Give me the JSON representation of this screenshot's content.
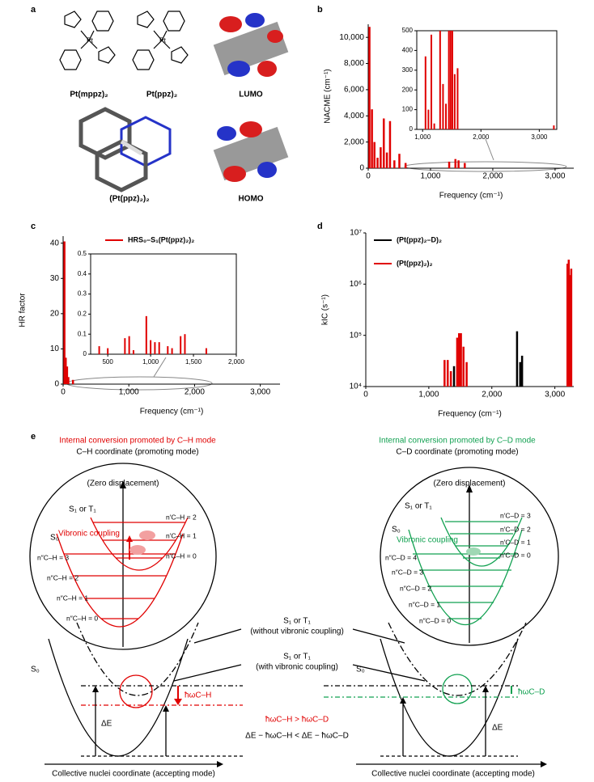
{
  "panels": {
    "a": "a",
    "b": "b",
    "c": "c",
    "d": "d",
    "e": "e"
  },
  "structures": {
    "labels": [
      "Pt(mppz)₂",
      "Pt(ppz)₂",
      "LUMO",
      "(Pt(ppz)₂)₂",
      "HOMO"
    ]
  },
  "chart_data": [
    {
      "type": "bar",
      "xlabel": "Frequency (cm⁻¹)",
      "ylabel": "NACME (cm⁻¹)",
      "color": "#e00000",
      "x": [
        20,
        60,
        100,
        150,
        200,
        250,
        300,
        350,
        420,
        500,
        600,
        1300,
        1400,
        1450,
        1550
      ],
      "values": [
        10800,
        4500,
        2000,
        800,
        1600,
        3800,
        1200,
        3600,
        600,
        1100,
        400,
        500,
        700,
        600,
        400
      ],
      "xlim": [
        0,
        3300
      ],
      "xticks": [
        0,
        {
          "value": 1000,
          "label": "1,000"
        },
        {
          "value": 2000,
          "label": "2,000"
        },
        {
          "value": 3000,
          "label": "3,000"
        }
      ],
      "ylim": [
        0,
        11000
      ],
      "yticks": [
        0,
        {
          "value": 2000,
          "label": "2,000"
        },
        {
          "value": 4000,
          "label": "4,000"
        },
        {
          "value": 6000,
          "label": "6,000"
        },
        {
          "value": 8000,
          "label": "8,000"
        },
        {
          "value": 10000,
          "label": "10,000"
        }
      ]
    },
    {
      "type": "bar",
      "color": "#e00000",
      "x": [
        1050,
        1100,
        1150,
        1200,
        1300,
        1350,
        1400,
        1450,
        1480,
        1510,
        1550,
        1600,
        3250
      ],
      "values": [
        370,
        100,
        480,
        30,
        500,
        230,
        130,
        500,
        500,
        500,
        280,
        310,
        20
      ],
      "xlim": [
        900,
        3300
      ],
      "xticks": [
        {
          "value": 1000,
          "label": "1,000"
        },
        {
          "value": 2000,
          "label": "2,000"
        },
        {
          "value": 3000,
          "label": "3,000"
        }
      ],
      "ylim": [
        0,
        500
      ],
      "yticks": [
        0,
        100,
        200,
        300,
        400,
        500
      ]
    },
    {
      "type": "bar",
      "xlabel": "Frequency (cm⁻¹)",
      "ylabel": "HR factor",
      "series": [
        {
          "name": "HRS₀–S₁(Pt(ppz)₂)₂",
          "color": "#e00000",
          "x": [
            20,
            40,
            60,
            80,
            150
          ],
          "values": [
            40.5,
            7.5,
            5,
            2,
            1.2
          ]
        }
      ],
      "xlim": [
        0,
        3300
      ],
      "xticks": [
        0,
        {
          "value": 1000,
          "label": "1,000"
        },
        {
          "value": 2000,
          "label": "2,000"
        },
        {
          "value": 3000,
          "label": "3,000"
        }
      ],
      "ylim": [
        0,
        42
      ],
      "yticks": [
        0,
        10,
        20,
        30,
        40
      ]
    },
    {
      "type": "bar",
      "color": "#e00000",
      "x": [
        400,
        500,
        700,
        750,
        800,
        950,
        1000,
        1050,
        1100,
        1200,
        1250,
        1350,
        1400,
        1650
      ],
      "values": [
        0.04,
        0.03,
        0.08,
        0.09,
        0.02,
        0.19,
        0.07,
        0.06,
        0.06,
        0.04,
        0.03,
        0.09,
        0.1,
        0.03
      ],
      "xlim": [
        300,
        2000
      ],
      "xticks": [
        500,
        {
          "value": 1000,
          "label": "1,000"
        },
        {
          "value": 1500,
          "label": "1,500"
        },
        {
          "value": 2000,
          "label": "2,000"
        }
      ],
      "ylim": [
        0,
        0.5
      ],
      "yticks": [
        0,
        0.1,
        0.2,
        0.3,
        0.4,
        0.5
      ]
    },
    {
      "type": "bar",
      "xlabel": "Frequency (cm⁻¹)",
      "ylabel": "kIC (s⁻¹)",
      "log_scale": true,
      "series": [
        {
          "name": "(Pt(ppz)₂–D)₂",
          "color": "#000000",
          "x": [
            1400,
            2400,
            2450,
            2480
          ],
          "values": [
            25000,
            120000,
            30000,
            40000
          ]
        },
        {
          "name": "(Pt(ppz)₂)₂",
          "color": "#e00000",
          "x": [
            1250,
            1300,
            1350,
            1450,
            1480,
            1510,
            1550,
            1600,
            3200,
            3220,
            3240,
            3260
          ],
          "values": [
            33000,
            33000,
            20000,
            90000,
            110000,
            110000,
            60000,
            30000,
            2500000,
            3000000,
            1500000,
            2000000
          ]
        }
      ],
      "xlim": [
        0,
        3300
      ],
      "xticks": [
        0,
        {
          "value": 1000,
          "label": "1,000"
        },
        {
          "value": 2000,
          "label": "2,000"
        },
        {
          "value": 3000,
          "label": "3,000"
        }
      ],
      "ylim": [
        10000,
        10000000
      ],
      "yticks": [
        {
          "value": 10000,
          "label": "10⁴"
        },
        {
          "value": 100000,
          "label": "10⁵"
        },
        {
          "value": 1000000,
          "label": "10⁶"
        },
        {
          "value": 10000000,
          "label": "10⁷"
        }
      ]
    }
  ],
  "diagram": {
    "left": {
      "title": "Internal conversion promoted by C–H mode",
      "subtitle": "C–H coordinate (promoting mode)",
      "zero": "(Zero displacement)",
      "upper": "S₁ or T₁",
      "lower": "S₀",
      "coupling": "Vibronic coupling",
      "upper_levels": [
        "n′C–H = 2",
        "n′C–H = 1",
        "n′C–H = 0"
      ],
      "lower_levels": [
        "n″C–H = 3",
        "n″C–H = 2",
        "n″C–H = 1",
        "n″C–H = 0"
      ],
      "s0": "S₀",
      "quantum": "ħωC–H",
      "delta": "ΔE"
    },
    "right": {
      "title": "Internal conversion promoted by C–D mode",
      "subtitle": "C–D coordinate (promoting mode)",
      "zero": "(Zero displacement)",
      "upper": "S₁ or T₁",
      "lower": "S₀",
      "coupling": "Vibronic coupling",
      "upper_levels": [
        "n′C–D = 3",
        "n′C–D = 2",
        "n′C–D = 1",
        "n′C–D = 0"
      ],
      "lower_levels": [
        "n″C–D = 4",
        "n″C–D = 3",
        "n″C–D = 2",
        "n″C–D = 1",
        "n″C–D = 0"
      ],
      "s0": "S₀",
      "quantum": "ħωC–D",
      "delta": "ΔE"
    },
    "middle": {
      "without": [
        "S₁ or T₁",
        "(without vibronic coupling)"
      ],
      "with": [
        "S₁ or T₁",
        "(with vibronic coupling)"
      ],
      "compare1": "ħωC–H > ħωC–D",
      "compare2": "ΔE − ħωC–H < ΔE − ħωC–D"
    },
    "axis_label": "Collective nuclei coordinate (accepting mode)"
  }
}
